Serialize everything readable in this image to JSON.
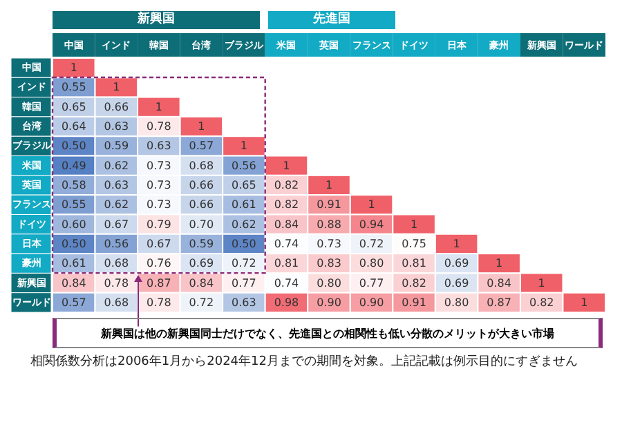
{
  "chart_data": {
    "type": "heatmap",
    "data_labels": true,
    "categories": [
      "中国",
      "インド",
      "韓国",
      "台湾",
      "ブラジル",
      "米国",
      "英国",
      "フランス",
      "ドイツ",
      "日本",
      "豪州",
      "新興国",
      "ワールド"
    ],
    "y_categories": [
      "中国",
      "インド",
      "韓国",
      "台湾",
      "ブラジル",
      "米国",
      "英国",
      "フランス",
      "ドイツ",
      "日本",
      "豪州",
      "新興国",
      "ワールド"
    ],
    "cells": [
      [
        1,
        null,
        null,
        null,
        null,
        null,
        null,
        null,
        null,
        null,
        null,
        null,
        null
      ],
      [
        0.55,
        1,
        null,
        null,
        null,
        null,
        null,
        null,
        null,
        null,
        null,
        null,
        null
      ],
      [
        0.65,
        0.66,
        1,
        null,
        null,
        null,
        null,
        null,
        null,
        null,
        null,
        null,
        null
      ],
      [
        0.64,
        0.63,
        0.78,
        1,
        null,
        null,
        null,
        null,
        null,
        null,
        null,
        null,
        null
      ],
      [
        0.5,
        0.59,
        0.63,
        0.57,
        1,
        null,
        null,
        null,
        null,
        null,
        null,
        null,
        null
      ],
      [
        0.49,
        0.62,
        0.73,
        0.68,
        0.56,
        1,
        null,
        null,
        null,
        null,
        null,
        null,
        null
      ],
      [
        0.58,
        0.63,
        0.73,
        0.66,
        0.65,
        0.82,
        1,
        null,
        null,
        null,
        null,
        null,
        null
      ],
      [
        0.55,
        0.62,
        0.73,
        0.66,
        0.61,
        0.82,
        0.91,
        1,
        null,
        null,
        null,
        null,
        null
      ],
      [
        0.6,
        0.67,
        0.79,
        0.7,
        0.62,
        0.84,
        0.88,
        0.94,
        1,
        null,
        null,
        null,
        null
      ],
      [
        0.5,
        0.56,
        0.67,
        0.59,
        0.5,
        0.74,
        0.73,
        0.72,
        0.75,
        1,
        null,
        null,
        null
      ],
      [
        0.61,
        0.68,
        0.76,
        0.69,
        0.72,
        0.81,
        0.83,
        0.8,
        0.81,
        0.69,
        1,
        null,
        null
      ],
      [
        0.84,
        0.78,
        0.87,
        0.84,
        0.77,
        0.74,
        0.8,
        0.77,
        0.82,
        0.69,
        0.84,
        1,
        null
      ],
      [
        0.57,
        0.68,
        0.78,
        0.72,
        0.63,
        0.98,
        0.9,
        0.9,
        0.91,
        0.8,
        0.87,
        0.82,
        1
      ]
    ],
    "cell_labels": [
      [
        "1",
        null,
        null,
        null,
        null,
        null,
        null,
        null,
        null,
        null,
        null,
        null,
        null
      ],
      [
        "0.55",
        "1",
        null,
        null,
        null,
        null,
        null,
        null,
        null,
        null,
        null,
        null,
        null
      ],
      [
        "0.65",
        "0.66",
        "1",
        null,
        null,
        null,
        null,
        null,
        null,
        null,
        null,
        null,
        null
      ],
      [
        "0.64",
        "0.63",
        "0.78",
        "1",
        null,
        null,
        null,
        null,
        null,
        null,
        null,
        null,
        null
      ],
      [
        "0.50",
        "0.59",
        "0.63",
        "0.57",
        "1",
        null,
        null,
        null,
        null,
        null,
        null,
        null,
        null
      ],
      [
        "0.49",
        "0.62",
        "0.73",
        "0.68",
        "0.56",
        "1",
        null,
        null,
        null,
        null,
        null,
        null,
        null
      ],
      [
        "0.58",
        "0.63",
        "0.73",
        "0.66",
        "0.65",
        "0.82",
        "1",
        null,
        null,
        null,
        null,
        null,
        null
      ],
      [
        "0.55",
        "0.62",
        "0.73",
        "0.66",
        "0.61",
        "0.82",
        "0.91",
        "1",
        null,
        null,
        null,
        null,
        null
      ],
      [
        "0.60",
        "0.67",
        "0.79",
        "0.70",
        "0.62",
        "0.84",
        "0.88",
        "0.94",
        "1",
        null,
        null,
        null,
        null
      ],
      [
        "0.50",
        "0.56",
        "0.67",
        "0.59",
        "0.50",
        "0.74",
        "0.73",
        "0.72",
        "0.75",
        "1",
        null,
        null,
        null
      ],
      [
        "0.61",
        "0.68",
        "0.76",
        "0.69",
        "0.72",
        "0.81",
        "0.83",
        "0.80",
        "0.81",
        "0.69",
        "1",
        null,
        null
      ],
      [
        "0.84",
        "0.78",
        "0.87",
        "0.84",
        "0.77",
        "0.74",
        "0.80",
        "0.77",
        "0.82",
        "0.69",
        "0.84",
        "1",
        null
      ],
      [
        "0.57",
        "0.68",
        "0.78",
        "0.72",
        "0.63",
        "0.98",
        "0.90",
        "0.90",
        "0.91",
        "0.80",
        "0.87",
        "0.82",
        "1"
      ]
    ],
    "annotations": [
      "新興国",
      "先進国",
      "新興国は他の新興国同士だけでなく、先進国との相関性も低い分散のメリットが大きい市場",
      "相関係数分析は2006年1月から2024年12月までの期間を対象。上記記載は例示目的にすぎません"
    ]
  }
}
